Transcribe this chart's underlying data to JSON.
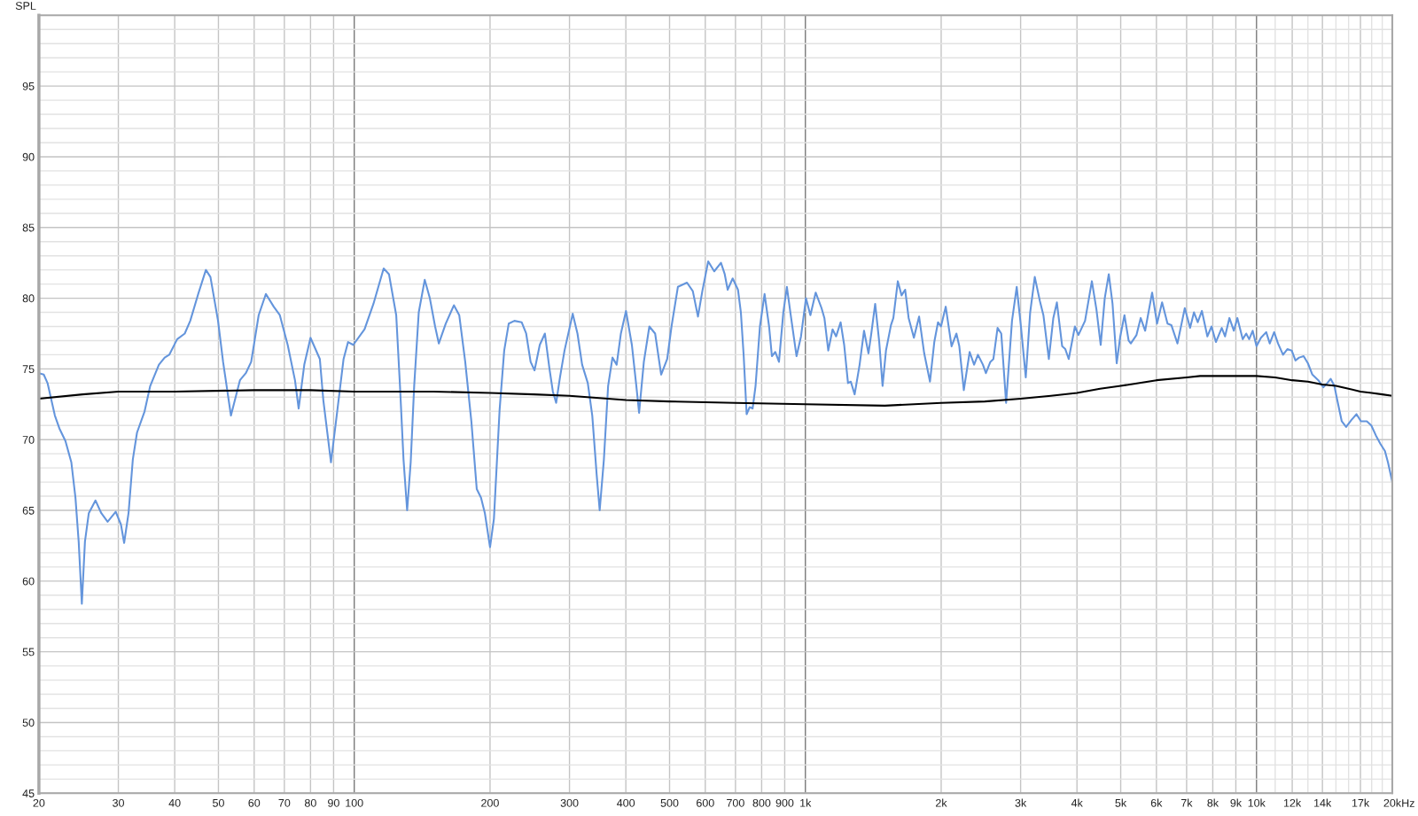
{
  "chart_data": {
    "type": "line",
    "ylabel": "SPL",
    "xlabel": "Hz",
    "log": "x",
    "grid": true,
    "xlim": [
      20,
      20000
    ],
    "ylim": [
      45,
      100
    ],
    "xticks": [
      20,
      30,
      40,
      50,
      60,
      70,
      80,
      90,
      100,
      200,
      300,
      400,
      500,
      600,
      700,
      800,
      900,
      {
        "value": 1000,
        "label": "1k"
      },
      {
        "value": 2000,
        "label": "2k"
      },
      {
        "value": 3000,
        "label": "3k"
      },
      {
        "value": 4000,
        "label": "4k"
      },
      {
        "value": 5000,
        "label": "5k"
      },
      {
        "value": 6000,
        "label": "6k"
      },
      {
        "value": 7000,
        "label": "7k"
      },
      {
        "value": 8000,
        "label": "8k"
      },
      {
        "value": 9000,
        "label": "9k"
      },
      {
        "value": 10000,
        "label": "10k"
      },
      {
        "value": 11000,
        "label": null
      },
      {
        "value": 12000,
        "label": "12k"
      },
      {
        "value": 13000,
        "label": null
      },
      {
        "value": 14000,
        "label": "14k"
      },
      {
        "value": 15000,
        "label": null
      },
      {
        "value": 16000,
        "label": null
      },
      {
        "value": 17000,
        "label": "17k"
      },
      {
        "value": 18000,
        "label": null
      },
      {
        "value": 19000,
        "label": null
      },
      {
        "value": 20000,
        "label": "20k"
      }
    ],
    "yticks": [
      45,
      {
        "value": 46,
        "label": null
      },
      {
        "value": 47,
        "label": null
      },
      {
        "value": 48,
        "label": null
      },
      {
        "value": 49,
        "label": null
      },
      50,
      {
        "value": 51,
        "label": null
      },
      {
        "value": 52,
        "label": null
      },
      {
        "value": 53,
        "label": null
      },
      {
        "value": 54,
        "label": null
      },
      55,
      {
        "value": 56,
        "label": null
      },
      {
        "value": 57,
        "label": null
      },
      {
        "value": 58,
        "label": null
      },
      {
        "value": 59,
        "label": null
      },
      60,
      {
        "value": 61,
        "label": null
      },
      {
        "value": 62,
        "label": null
      },
      {
        "value": 63,
        "label": null
      },
      {
        "value": 64,
        "label": null
      },
      65,
      {
        "value": 66,
        "label": null
      },
      {
        "value": 67,
        "label": null
      },
      {
        "value": 68,
        "label": null
      },
      {
        "value": 69,
        "label": null
      },
      70,
      {
        "value": 71,
        "label": null
      },
      {
        "value": 72,
        "label": null
      },
      {
        "value": 73,
        "label": null
      },
      {
        "value": 74,
        "label": null
      },
      75,
      {
        "value": 76,
        "label": null
      },
      {
        "value": 77,
        "label": null
      },
      {
        "value": 78,
        "label": null
      },
      {
        "value": 79,
        "label": null
      },
      80,
      {
        "value": 81,
        "label": null
      },
      {
        "value": 82,
        "label": null
      },
      {
        "value": 83,
        "label": null
      },
      {
        "value": 84,
        "label": null
      },
      85,
      {
        "value": 86,
        "label": null
      },
      {
        "value": 87,
        "label": null
      },
      {
        "value": 88,
        "label": null
      },
      {
        "value": 89,
        "label": null
      },
      90,
      {
        "value": 91,
        "label": null
      },
      {
        "value": 92,
        "label": null
      },
      {
        "value": 93,
        "label": null
      },
      {
        "value": 94,
        "label": null
      },
      95,
      {
        "value": 96,
        "label": null
      },
      {
        "value": 97,
        "label": null
      },
      {
        "value": 98,
        "label": null
      },
      {
        "value": 99,
        "label": null
      }
    ],
    "series": [
      {
        "color": "#6495dc",
        "x": [
          20,
          20.5,
          20.9,
          21.7,
          22.2,
          22.9,
          23.6,
          24.1,
          24.5,
          24.9,
          25.3,
          25.8,
          26.7,
          27.5,
          28.4,
          29.6,
          30.4,
          30.9,
          31.6,
          32.3,
          33.0,
          34.3,
          35.3,
          36.9,
          38.0,
          38.9,
          40.5,
          42.1,
          43.3,
          45.1,
          46.9,
          48.0,
          49.9,
          51.2,
          53.3,
          55.8,
          57.5,
          59.1,
          61.4,
          63.7,
          66.3,
          68.4,
          71.2,
          73.9,
          75.3,
          77.5,
          80.0,
          83.9,
          85.4,
          88.8,
          91.6,
          94.7,
          96.9,
          99.5,
          105.4,
          110.3,
          116.2,
          119.4,
          123.9,
          126.3,
          128.6,
          131.0,
          133.4,
          135.8,
          139.0,
          143.3,
          147.1,
          151.1,
          154.0,
          159.5,
          166.3,
          170.9,
          176.2,
          181.8,
          186.9,
          191,
          194.8,
          200,
          204,
          210,
          215,
          220,
          226.5,
          235,
          240.5,
          246,
          251,
          257.8,
          264.6,
          270.9,
          275.6,
          280.3,
          285.8,
          292.5,
          305,
          312.5,
          320,
          329.4,
          337,
          344.7,
          350,
          357.6,
          365.4,
          373.6,
          381.7,
          390,
          400.3,
          412.5,
          422,
          428,
          438.5,
          451,
          464.5,
          479,
          494,
          505,
          521.7,
          546.5,
          563,
          578,
          591,
          609,
          628,
          650,
          662.6,
          672.6,
          690,
          709,
          719.5,
          730,
          741,
          752.6,
          764,
          775.5,
          793,
          812,
          831,
          843,
          857.6,
          874,
          893.6,
          910,
          928,
          956,
          978,
          1003,
          1026,
          1054,
          1086,
          1102,
          1124,
          1149,
          1170,
          1197,
          1219,
          1243,
          1261,
          1286,
          1319,
          1349,
          1380,
          1400,
          1428,
          1458,
          1483,
          1509,
          1548,
          1567,
          1603,
          1634,
          1664,
          1694,
          1740,
          1787,
          1834,
          1889,
          1931,
          1968,
          1998,
          2047,
          2109,
          2162,
          2194,
          2245,
          2313,
          2366,
          2413,
          2475,
          2513,
          2571,
          2611,
          2667,
          2718,
          2786,
          2871,
          2941,
          3005,
          3080,
          3150,
          3225,
          3310,
          3370,
          3465,
          3545,
          3610,
          3709,
          3769,
          3835,
          3958,
          4030,
          4168,
          4316,
          4418,
          4515,
          4609,
          4705,
          4796,
          4899,
          4989,
          5097,
          5207,
          5265,
          5420,
          5537,
          5665,
          5870,
          6020,
          6176,
          6350,
          6475,
          6680,
          6935,
          7125,
          7268,
          7409,
          7568,
          7783,
          7949,
          8128,
          8375,
          8516,
          8708,
          8909,
          9070,
          9319,
          9488,
          9632,
          9806,
          10000,
          10228,
          10508,
          10700,
          10943,
          11160,
          11450,
          11706,
          11970,
          12200,
          12430,
          12720,
          13000,
          13300,
          13710,
          14070,
          14350,
          14600,
          14880,
          15100,
          15450,
          15800,
          16240,
          16660,
          17040,
          17560,
          17970,
          18390,
          18820,
          19260,
          19560,
          20000
        ],
        "values": [
          74.7,
          74.6,
          74.0,
          71.7,
          70.8,
          69.9,
          68.4,
          65.9,
          62.8,
          58.4,
          62.8,
          64.8,
          65.7,
          64.8,
          64.2,
          64.9,
          64.0,
          62.7,
          64.8,
          68.6,
          70.5,
          72.0,
          73.8,
          75.3,
          75.8,
          76.0,
          77.1,
          77.5,
          78.4,
          80.3,
          82.0,
          81.5,
          78.4,
          75.5,
          71.7,
          74.2,
          74.7,
          75.5,
          78.8,
          80.3,
          79.4,
          78.8,
          76.7,
          74.2,
          72.2,
          75.3,
          77.2,
          75.7,
          72.8,
          68.4,
          71.9,
          75.7,
          76.9,
          76.7,
          77.8,
          79.6,
          82.1,
          81.7,
          78.8,
          73.8,
          68.6,
          65.0,
          68.4,
          73.8,
          79.0,
          81.3,
          80.0,
          78.0,
          76.8,
          78.2,
          79.5,
          78.8,
          75.5,
          71.3,
          66.5,
          65.9,
          64.8,
          62.4,
          64.4,
          72.1,
          76.3,
          78.2,
          78.4,
          78.3,
          77.5,
          75.5,
          74.9,
          76.7,
          77.5,
          75.0,
          73.4,
          72.6,
          74.4,
          76.3,
          78.9,
          77.5,
          75.3,
          74.0,
          71.7,
          67.5,
          65.0,
          68.6,
          73.8,
          75.8,
          75.3,
          77.5,
          79.1,
          76.7,
          73.8,
          71.9,
          75.5,
          78.0,
          77.5,
          74.6,
          75.7,
          78.0,
          80.8,
          81.1,
          80.5,
          78.7,
          80.5,
          82.6,
          81.9,
          82.5,
          81.7,
          80.6,
          81.4,
          80.6,
          79.0,
          75.9,
          71.8,
          72.3,
          72.2,
          73.8,
          78.0,
          80.3,
          78.0,
          75.9,
          76.2,
          75.5,
          79.0,
          80.8,
          78.8,
          75.9,
          77.3,
          80.0,
          78.8,
          80.4,
          79.3,
          78.6,
          76.3,
          77.8,
          77.3,
          78.3,
          76.7,
          74.0,
          74.1,
          73.2,
          75.3,
          77.7,
          76.1,
          77.5,
          79.6,
          76.9,
          73.8,
          76.3,
          78.1,
          78.6,
          81.2,
          80.2,
          80.6,
          78.6,
          77.2,
          78.7,
          76.1,
          74.1,
          76.9,
          78.3,
          78.0,
          79.4,
          76.6,
          77.5,
          76.6,
          73.5,
          76.2,
          75.3,
          76.0,
          75.3,
          74.7,
          75.5,
          75.7,
          77.9,
          77.5,
          72.6,
          78.4,
          80.8,
          78.0,
          74.4,
          79.0,
          81.5,
          79.8,
          78.8,
          75.7,
          78.6,
          79.7,
          76.6,
          76.4,
          75.7,
          78.0,
          77.4,
          78.4,
          81.2,
          79.2,
          76.7,
          80.0,
          81.7,
          79.6,
          75.4,
          77.3,
          78.8,
          77.0,
          76.8,
          77.4,
          78.6,
          77.7,
          80.4,
          78.2,
          79.7,
          78.2,
          78.1,
          76.8,
          79.3,
          77.9,
          79.0,
          78.3,
          79.1,
          77.3,
          78.0,
          76.9,
          77.9,
          77.3,
          78.6,
          77.7,
          78.6,
          77.1,
          77.5,
          77.1,
          77.7,
          76.6,
          77.2,
          77.6,
          76.8,
          77.6,
          76.8,
          76.0,
          76.4,
          76.3,
          75.6,
          75.8,
          75.9,
          75.4,
          74.6,
          74.2,
          73.7,
          74.0,
          74.3,
          73.8,
          72.8,
          71.3,
          70.9,
          71.4,
          71.8,
          71.3,
          71.3,
          71.0,
          70.3,
          69.7,
          69.2,
          68.4,
          67.0
        ]
      },
      {
        "color": "#000000",
        "x": [
          20,
          25,
          30,
          40,
          60,
          80,
          100,
          150,
          200,
          250,
          300,
          400,
          500,
          700,
          1000,
          1500,
          2000,
          2500,
          3000,
          3500,
          4000,
          4500,
          5000,
          6000,
          7000,
          7500,
          8000,
          8500,
          9000,
          9500,
          10000,
          11000,
          12000,
          13000,
          14000,
          15000,
          16000,
          17000,
          18000,
          19000,
          20000
        ],
        "values": [
          72.9,
          73.2,
          73.4,
          73.4,
          73.5,
          73.5,
          73.4,
          73.4,
          73.3,
          73.2,
          73.1,
          72.8,
          72.7,
          72.6,
          72.5,
          72.4,
          72.6,
          72.7,
          72.9,
          73.1,
          73.3,
          73.6,
          73.8,
          74.2,
          74.4,
          74.5,
          74.5,
          74.5,
          74.5,
          74.5,
          74.5,
          74.4,
          74.2,
          74.1,
          73.9,
          73.8,
          73.6,
          73.4,
          73.3,
          73.2,
          73.1
        ]
      }
    ]
  }
}
